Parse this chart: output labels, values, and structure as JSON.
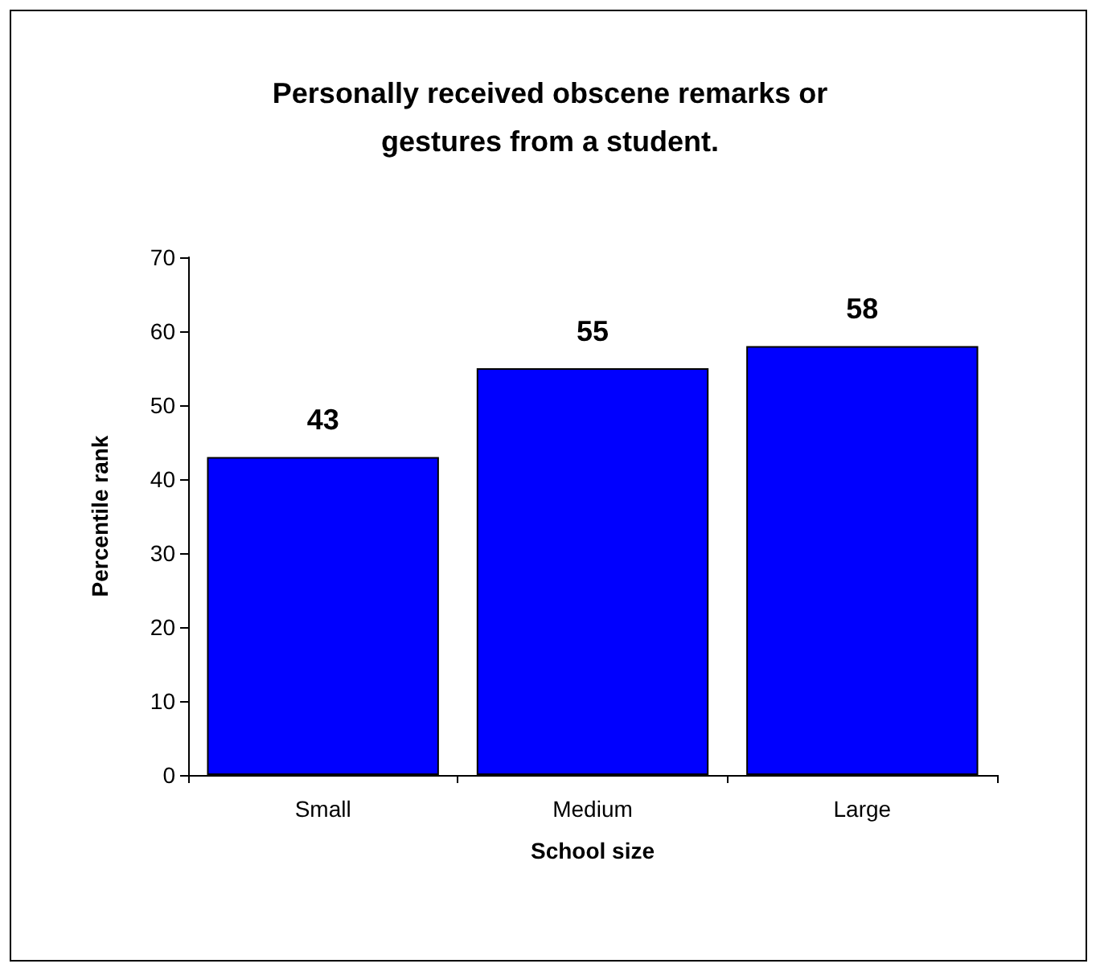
{
  "chart_data": {
    "type": "bar",
    "title": "Personally received obscene remarks or\ngestures from a student.",
    "xlabel": "School size",
    "ylabel": "Percentile rank",
    "categories": [
      "Small",
      "Medium",
      "Large"
    ],
    "values": [
      43,
      55,
      58
    ],
    "color": "#0000ff",
    "ylim": [
      0,
      70
    ],
    "yticks": [
      0,
      10,
      20,
      30,
      40,
      50,
      60,
      70
    ],
    "grid": false,
    "data_labels": true
  }
}
